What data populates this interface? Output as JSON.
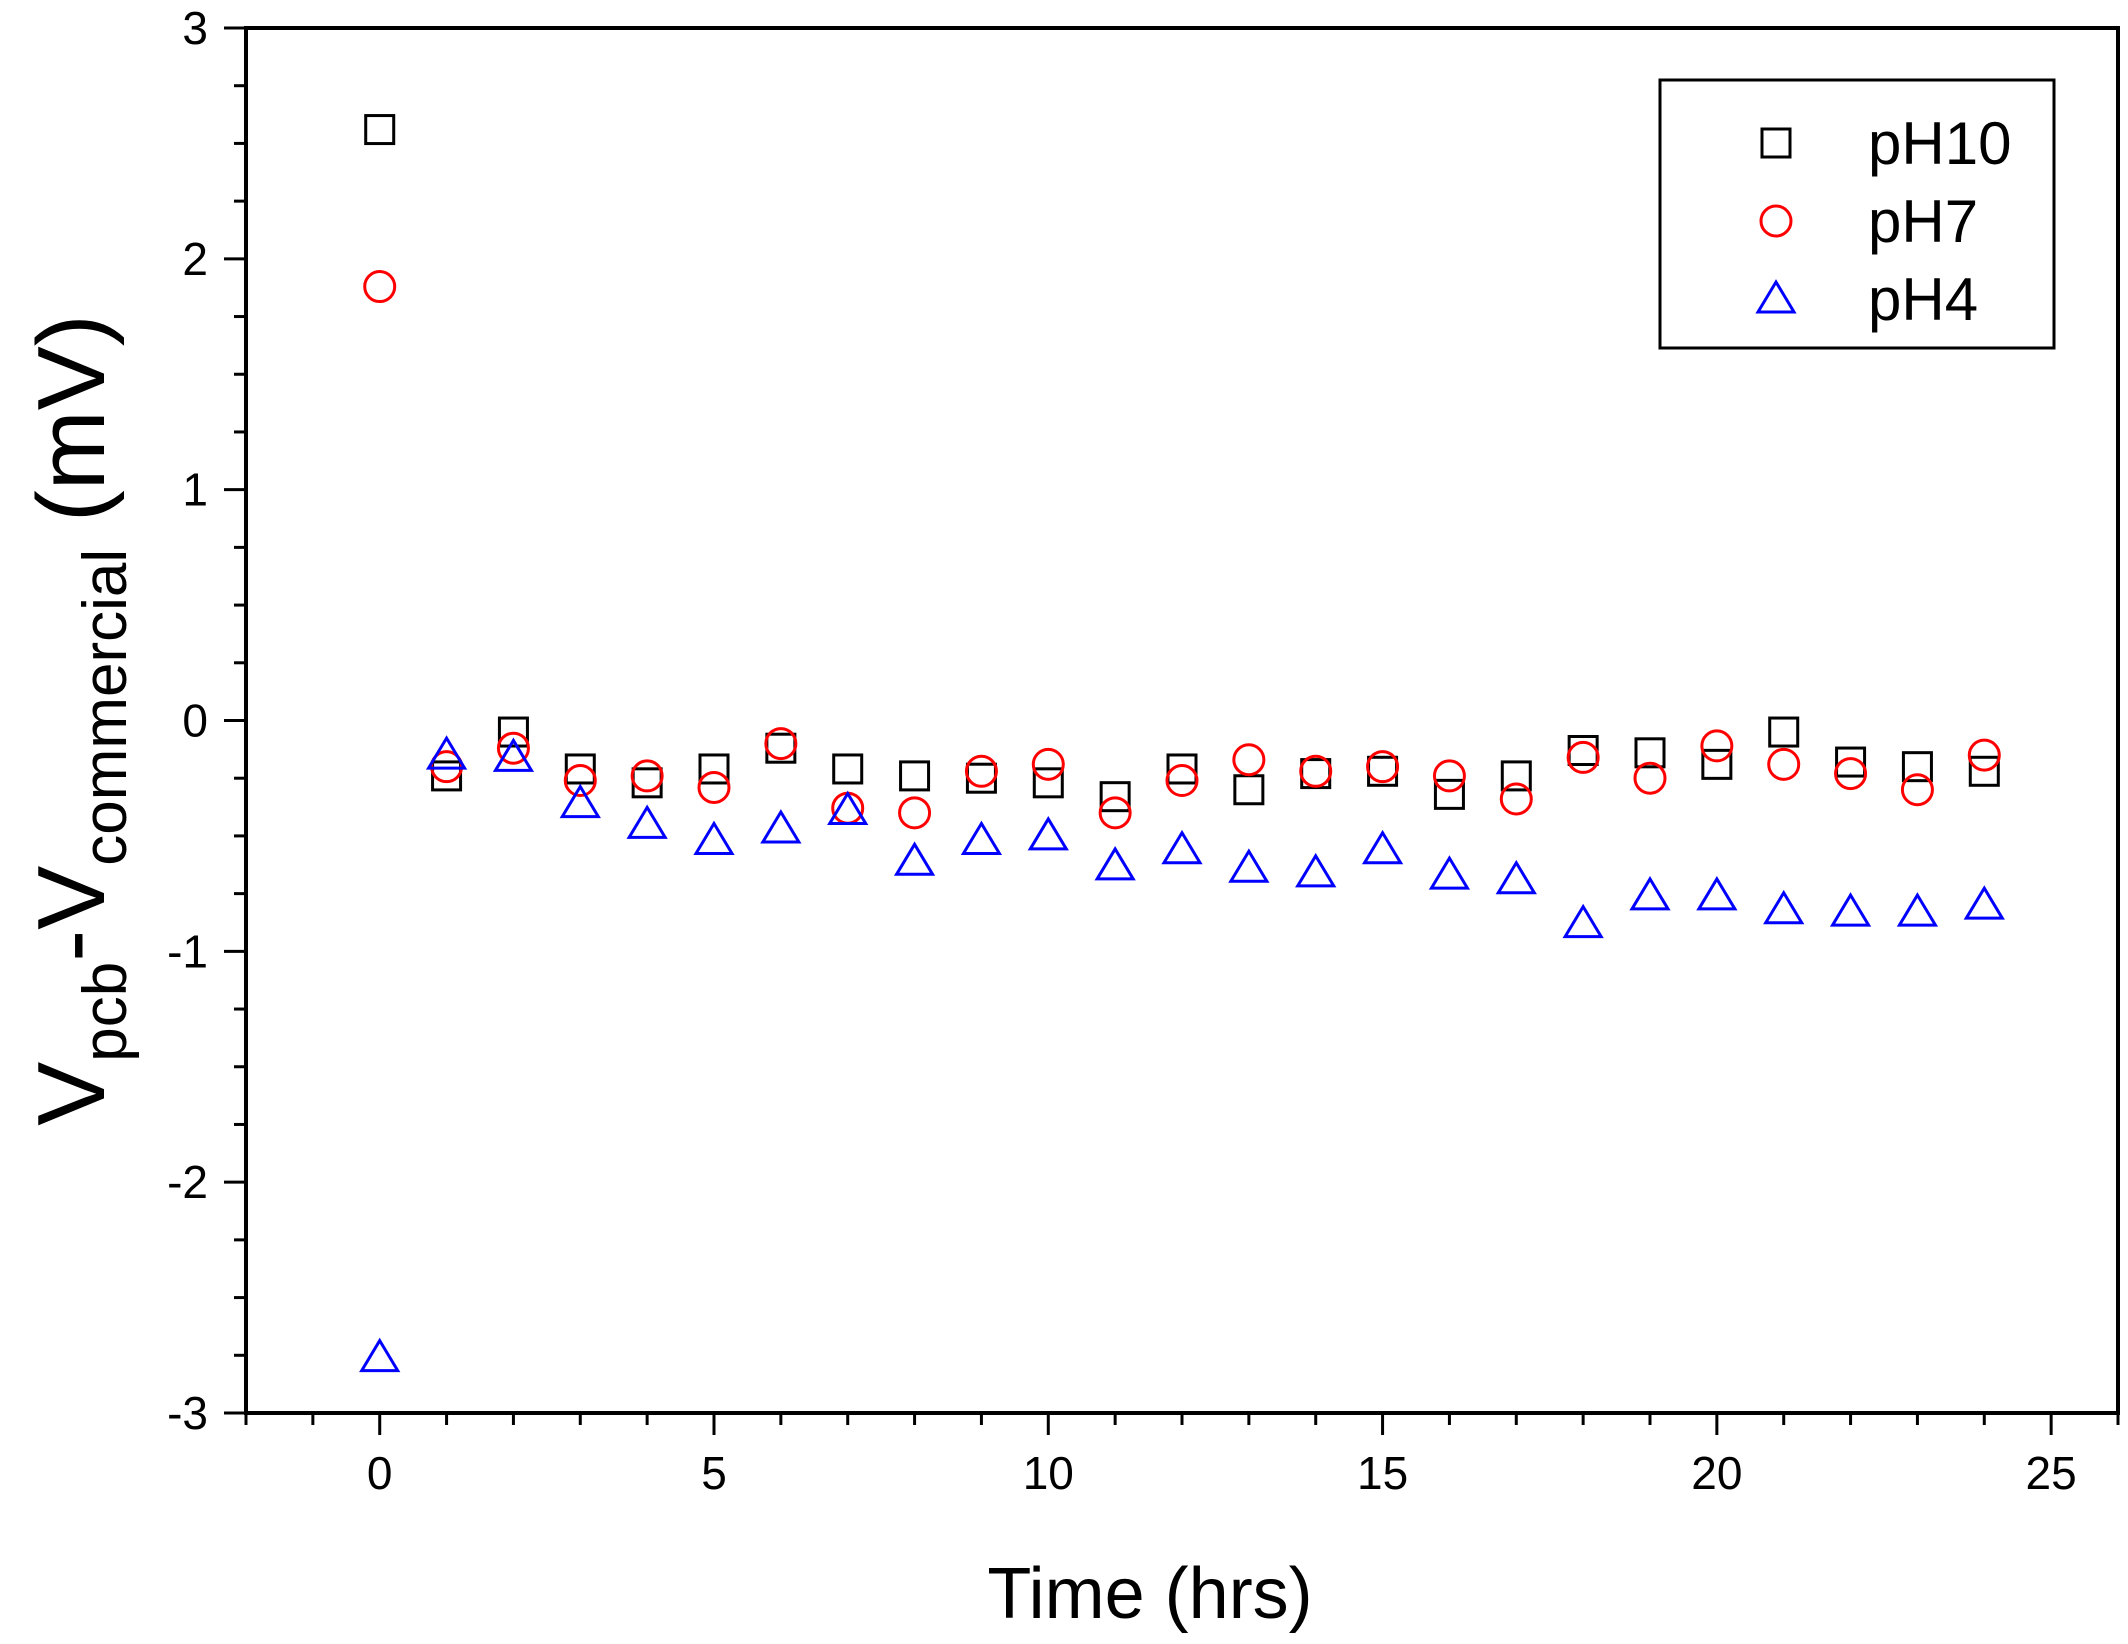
{
  "chart_data": {
    "type": "scatter",
    "title": "",
    "xlabel": "Time (hrs)",
    "ylabel": {
      "parts": [
        {
          "text": "V",
          "role": "base"
        },
        {
          "text": "pcb",
          "role": "sub"
        },
        {
          "text": "-V",
          "role": "base"
        },
        {
          "text": "commercial",
          "role": "sub"
        },
        {
          "text": " (mV)",
          "role": "base"
        }
      ]
    },
    "xlim": [
      -2,
      26
    ],
    "ylim": [
      -3,
      3
    ],
    "xticks": [
      0,
      5,
      10,
      15,
      20,
      25
    ],
    "xtick_labels": [
      "0",
      "5",
      "10",
      "15",
      "20",
      "25"
    ],
    "yticks": [
      -3,
      -2,
      -1,
      0,
      1,
      2,
      3
    ],
    "ytick_labels": [
      "-3",
      "-2",
      "-1",
      "0",
      "1",
      "2",
      "3"
    ],
    "legend_position": "top-right",
    "x": [
      0,
      1,
      2,
      3,
      4,
      5,
      6,
      7,
      8,
      9,
      10,
      11,
      12,
      13,
      14,
      15,
      16,
      17,
      18,
      19,
      20,
      21,
      22,
      23,
      24
    ],
    "series": [
      {
        "name": "pH10",
        "marker": "square",
        "color": "#000000",
        "values": [
          2.56,
          -0.24,
          -0.05,
          -0.21,
          -0.27,
          -0.21,
          -0.12,
          -0.21,
          -0.24,
          -0.25,
          -0.27,
          -0.33,
          -0.21,
          -0.3,
          -0.23,
          -0.22,
          -0.32,
          -0.24,
          -0.13,
          -0.14,
          -0.19,
          -0.05,
          -0.18,
          -0.2,
          -0.22
        ]
      },
      {
        "name": "pH7",
        "marker": "circle",
        "color": "#ff0000",
        "values": [
          1.88,
          -0.2,
          -0.12,
          -0.26,
          -0.24,
          -0.29,
          -0.1,
          -0.38,
          -0.4,
          -0.22,
          -0.19,
          -0.4,
          -0.26,
          -0.17,
          -0.22,
          -0.2,
          -0.24,
          -0.34,
          -0.16,
          -0.25,
          -0.11,
          -0.19,
          -0.23,
          -0.3,
          -0.15
        ]
      },
      {
        "name": "pH4",
        "marker": "triangle",
        "color": "#0000ff",
        "values": [
          -2.76,
          -0.15,
          -0.16,
          -0.36,
          -0.45,
          -0.52,
          -0.47,
          -0.39,
          -0.61,
          -0.52,
          -0.5,
          -0.63,
          -0.56,
          -0.64,
          -0.66,
          -0.56,
          -0.67,
          -0.69,
          -0.88,
          -0.76,
          -0.76,
          -0.82,
          -0.83,
          -0.83,
          -0.8
        ]
      }
    ]
  }
}
